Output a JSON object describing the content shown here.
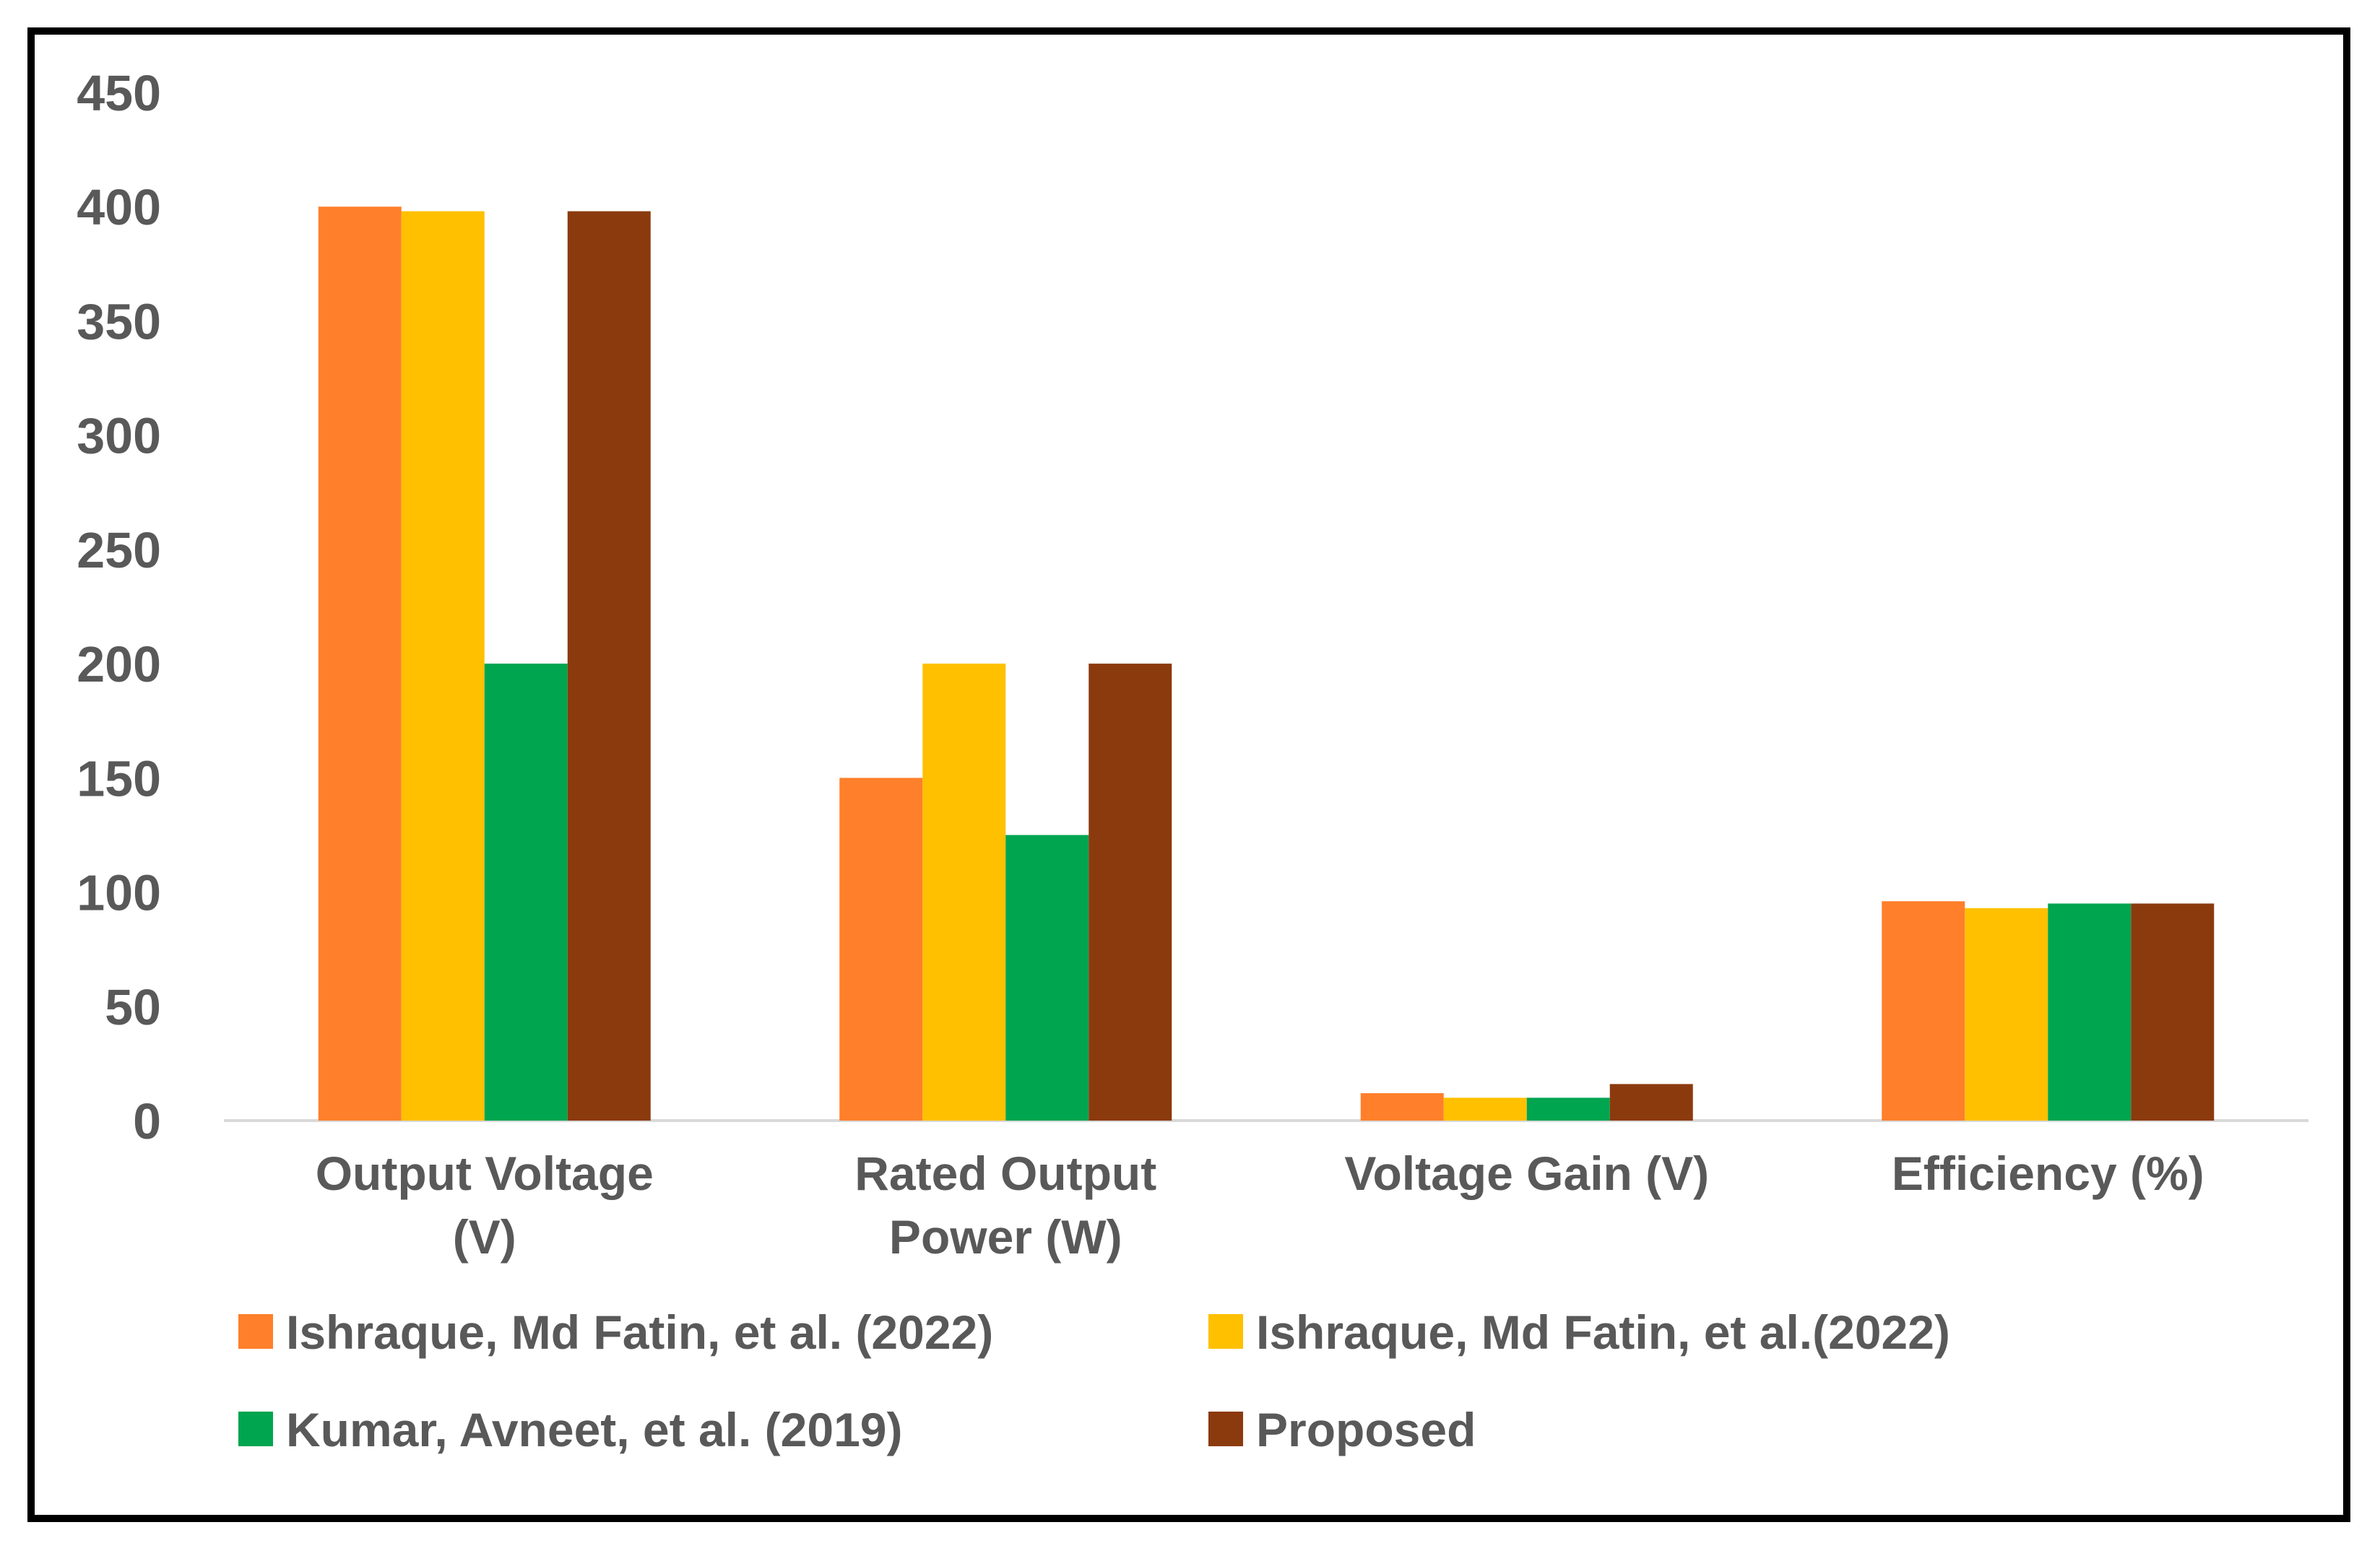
{
  "chart_data": {
    "type": "bar",
    "title": "",
    "xlabel": "",
    "ylabel": "",
    "ylim": [
      0,
      450
    ],
    "yticks": [
      0,
      50,
      100,
      150,
      200,
      250,
      300,
      350,
      400,
      450
    ],
    "grid": false,
    "legend_position": "bottom",
    "categories": [
      [
        "Output Voltage",
        "(V)"
      ],
      [
        "Rated Output",
        "Power (W)"
      ],
      [
        "Voltage Gain (V)"
      ],
      [
        "Efficiency (%)"
      ]
    ],
    "series": [
      {
        "name": "Ishraque, Md Fatin, et al. (2022)",
        "color": "#FF7F2A",
        "values": [
          400,
          150,
          12,
          96
        ]
      },
      {
        "name": "Ishraque, Md Fatin, et al.(2022)",
        "color": "#FFC000",
        "values": [
          398,
          200,
          10,
          93
        ]
      },
      {
        "name": "Kumar, Avneet, et al. (2019)",
        "color": "#00A550",
        "values": [
          200,
          125,
          10,
          95
        ]
      },
      {
        "name": "Proposed",
        "color": "#8B3A0E",
        "values": [
          398,
          200,
          16,
          95
        ]
      }
    ]
  }
}
